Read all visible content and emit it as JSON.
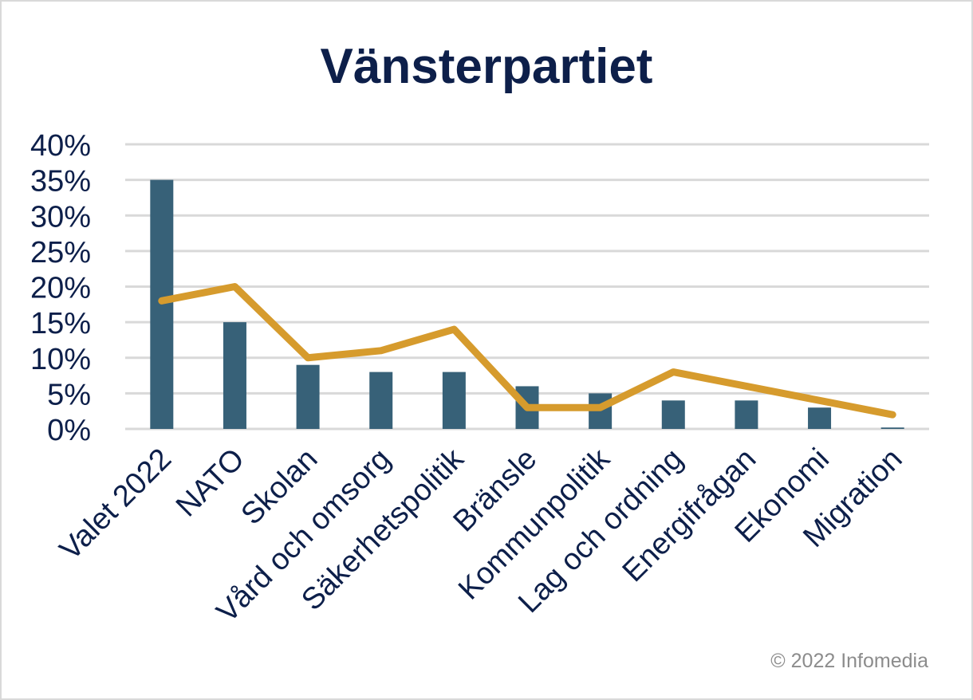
{
  "chart_data": {
    "type": "bar",
    "title": "Vänsterpartiet",
    "xlabel": "",
    "ylabel": "",
    "categories": [
      "Valet 2022",
      "NATO",
      "Skolan",
      "Vård och omsorg",
      "Säkerhetspolitik",
      "Bränsle",
      "Kommunpolitik",
      "Lag och ordning",
      "Energifrågan",
      "Ekonomi",
      "Migration"
    ],
    "series": [
      {
        "type": "bar",
        "color": "#376178",
        "values": [
          35,
          15,
          9,
          8,
          8,
          6,
          5,
          4,
          4,
          3,
          0.2
        ]
      },
      {
        "type": "line",
        "color": "#d69b2d",
        "values": [
          18,
          20,
          10,
          11,
          14,
          3,
          3,
          8,
          6,
          4,
          2
        ]
      }
    ],
    "ylim": [
      0,
      40
    ],
    "yticks": [
      "0%",
      "5%",
      "10%",
      "15%",
      "20%",
      "25%",
      "30%",
      "35%",
      "40%"
    ],
    "grid": true,
    "legend": "none"
  },
  "footer": {
    "copyright": "© 2022 Infomedia"
  },
  "colors": {
    "text": "#0d1f4a",
    "grid": "#d9d9d9",
    "copyright": "#8c8c8c"
  }
}
